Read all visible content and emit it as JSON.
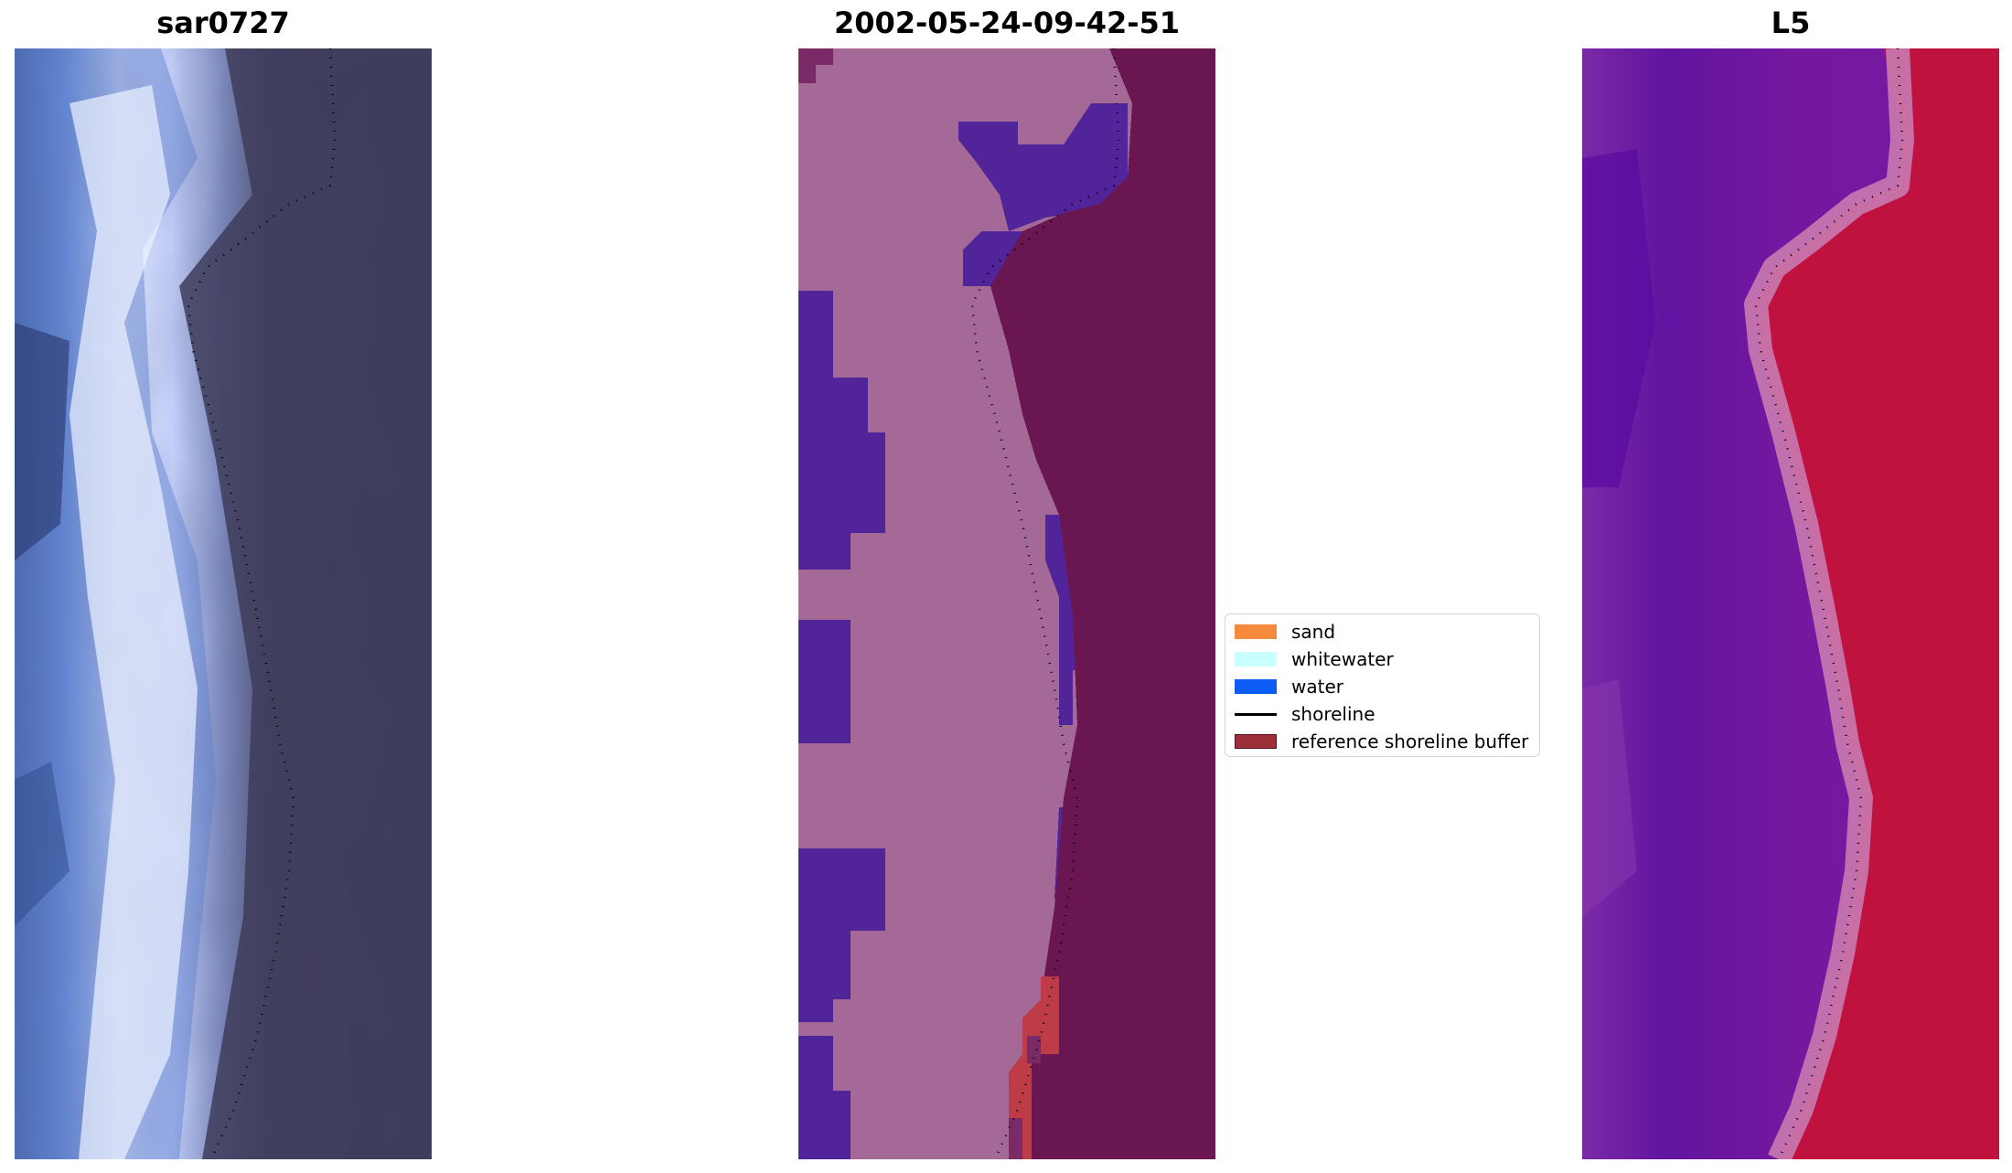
{
  "panels": [
    {
      "id": "rgb",
      "title": "sar0727"
    },
    {
      "id": "classified",
      "title": "2002-05-24-09-42-51"
    },
    {
      "id": "mndwi",
      "title": "L5"
    }
  ],
  "legend": {
    "items": [
      {
        "label": "sand",
        "kind": "patch",
        "color": "#f58a3c"
      },
      {
        "label": "whitewater",
        "kind": "patch",
        "color": "#c8ffff"
      },
      {
        "label": "water",
        "kind": "patch",
        "color": "#0c5cf5"
      },
      {
        "label": "shoreline",
        "kind": "line",
        "color": "#000000"
      },
      {
        "label": "reference shoreline buffer",
        "kind": "patch",
        "color": "#9b2f3a",
        "edge": "#5a1020"
      }
    ]
  },
  "colors": {
    "land_pink": "#a46996",
    "water_purple": "#52249a",
    "sea_maroon": "#6a1650",
    "buffer_red": "#be3c48",
    "ocean_dark": "#3e3c5a",
    "beach_white": "#e4ecff",
    "index_purple": "#6a18a0",
    "index_red": "#c0123e"
  }
}
